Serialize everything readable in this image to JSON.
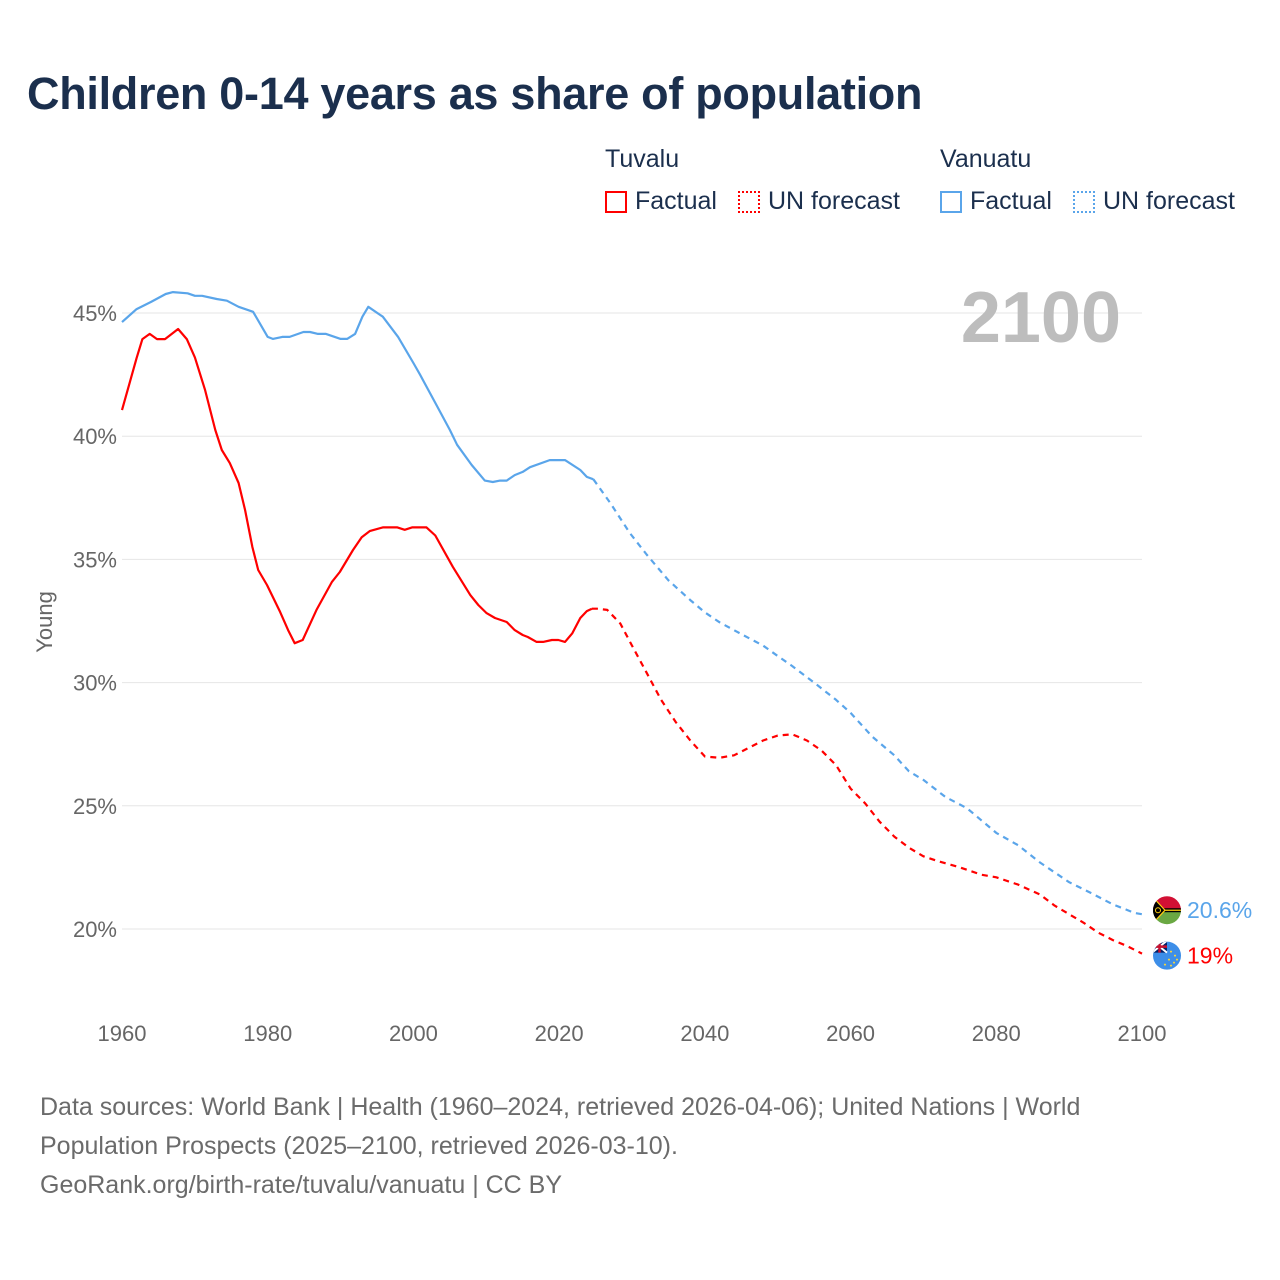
{
  "title": "Children 0-14 years as share of population",
  "legend": {
    "groups": [
      {
        "name": "Tuvalu",
        "items": [
          "Factual",
          "UN forecast"
        ],
        "color": "#ff0000"
      },
      {
        "name": "Vanuatu",
        "items": [
          "Factual",
          "UN forecast"
        ],
        "color": "#5aa5ea"
      }
    ]
  },
  "year_label": "2100",
  "footer": {
    "line1": "Data sources: World Bank | Health (1960–2024, retrieved 2026-04-06); United Nations | World",
    "line2": "Population Prospects (2025–2100, retrieved 2026-03-10).",
    "line3": "GeoRank.org/birth-rate/tuvalu/vanuatu | CC BY"
  },
  "chart_data": {
    "type": "line",
    "title": "Children 0-14 years as share of population",
    "xlabel": "",
    "ylabel": "Young",
    "xlim": [
      1960,
      2100
    ],
    "ylim": [
      17.5,
      47
    ],
    "x_ticks": [
      "1960",
      "1980",
      "2000",
      "2020",
      "2040",
      "2060",
      "2080",
      "2100"
    ],
    "y_ticks": [
      {
        "value": 20,
        "label": "20%"
      },
      {
        "value": 25,
        "label": "25%"
      },
      {
        "value": 30,
        "label": "30%"
      },
      {
        "value": 35,
        "label": "35%"
      },
      {
        "value": 40,
        "label": "40%"
      },
      {
        "value": 45,
        "label": "45%"
      }
    ],
    "grid": true,
    "legend_position": "top-right",
    "series": [
      {
        "name": "Tuvalu",
        "kind": "Factual",
        "color": "#ff0000",
        "dashed": false,
        "x": [
          1960,
          1962,
          1962.8,
          1963.8,
          1964.8,
          1965.9,
          1967.7,
          1968.9,
          1970,
          1971.4,
          1972.8,
          1973.7,
          1974.8,
          1976,
          1976.9,
          1977.9,
          1978.7,
          1979.9,
          1981.7,
          1982.8,
          1983.7,
          1984.8,
          1986.7,
          1988.8,
          1989.9,
          1991.7,
          1992.9,
          1994,
          1995.8,
          1997.8,
          1998.8,
          1999.8,
          2001.8,
          2003,
          2005.4,
          2007.8,
          2008.9,
          2010,
          2011.2,
          2012.8,
          2013.9,
          2015,
          2015.7,
          2016.9,
          2017.8,
          2019,
          2019.9,
          2020.8,
          2021.8,
          2022.9,
          2023.8,
          2024.5
        ],
        "y": [
          41.06,
          43.17,
          43.94,
          44.15,
          43.94,
          43.94,
          44.35,
          43.94,
          43.2,
          41.87,
          40.25,
          39.44,
          38.91,
          38.1,
          37.0,
          35.5,
          34.57,
          33.96,
          32.87,
          32.13,
          31.6,
          31.73,
          32.95,
          34.08,
          34.49,
          35.38,
          35.9,
          36.15,
          36.3,
          36.3,
          36.2,
          36.3,
          36.3,
          35.97,
          34.7,
          33.55,
          33.15,
          32.83,
          32.62,
          32.46,
          32.13,
          31.93,
          31.85,
          31.65,
          31.65,
          31.73,
          31.73,
          31.65,
          32.0,
          32.62,
          32.9,
          33.0
        ]
      },
      {
        "name": "Tuvalu",
        "kind": "UN forecast",
        "color": "#ff0000",
        "dashed": true,
        "x": [
          2024.5,
          2025.2,
          2026.6,
          2028.4,
          2030,
          2032,
          2034,
          2036,
          2038,
          2040,
          2042,
          2044,
          2046,
          2048,
          2050,
          2052,
          2054,
          2056,
          2058,
          2060,
          2062,
          2064,
          2066,
          2068,
          2070,
          2072,
          2075,
          2078,
          2080,
          2083,
          2086,
          2088,
          2090,
          2092,
          2094,
          2096,
          2098,
          2100
        ],
        "y": [
          33.0,
          33.0,
          32.95,
          32.4,
          31.5,
          30.4,
          29.3,
          28.4,
          27.65,
          27.0,
          26.95,
          27.05,
          27.35,
          27.65,
          27.85,
          27.9,
          27.65,
          27.25,
          26.65,
          25.7,
          25.1,
          24.35,
          23.75,
          23.3,
          22.95,
          22.75,
          22.5,
          22.2,
          22.1,
          21.8,
          21.4,
          20.95,
          20.6,
          20.25,
          19.85,
          19.55,
          19.3,
          19.0
        ]
      },
      {
        "name": "Vanuatu",
        "kind": "Factual",
        "color": "#5aa5ea",
        "dashed": false,
        "x": [
          1960,
          1962,
          1964,
          1966,
          1967,
          1969,
          1970,
          1971,
          1973,
          1974.4,
          1976,
          1978,
          1980,
          1980.7,
          1982,
          1983,
          1984.9,
          1985.8,
          1986.9,
          1988,
          1990,
          1990.9,
          1992,
          1993,
          1993.8,
          1995.8,
          1997.9,
          2000,
          2000.9,
          2003,
          2005,
          2006,
          2008,
          2009.8,
          2010.9,
          2011.9,
          2012.8,
          2013.9,
          2015,
          2016,
          2018.7,
          2020.8,
          2022.9,
          2023.8,
          2024.7
        ],
        "y": [
          44.63,
          45.16,
          45.45,
          45.77,
          45.85,
          45.8,
          45.7,
          45.7,
          45.57,
          45.5,
          45.25,
          45.05,
          44.03,
          43.95,
          44.03,
          44.03,
          44.23,
          44.23,
          44.15,
          44.15,
          43.95,
          43.95,
          44.15,
          44.85,
          45.25,
          44.85,
          44.03,
          42.97,
          42.5,
          41.35,
          40.25,
          39.65,
          38.83,
          38.2,
          38.14,
          38.2,
          38.2,
          38.42,
          38.55,
          38.74,
          39.03,
          39.03,
          38.63,
          38.35,
          38.25
        ]
      },
      {
        "name": "Vanuatu",
        "kind": "UN forecast",
        "color": "#5aa5ea",
        "dashed": true,
        "x": [
          2024.7,
          2027,
          2029.7,
          2032,
          2035,
          2038,
          2040,
          2042,
          2045,
          2048,
          2050,
          2052,
          2055,
          2058,
          2060,
          2063,
          2066,
          2068,
          2070,
          2073,
          2076,
          2080,
          2083,
          2086,
          2090,
          2093,
          2096,
          2099,
          2100
        ],
        "y": [
          38.25,
          37.3,
          36.07,
          35.2,
          34.15,
          33.35,
          32.85,
          32.45,
          31.97,
          31.5,
          31.08,
          30.67,
          30.0,
          29.3,
          28.77,
          27.8,
          27.05,
          26.4,
          26.05,
          25.36,
          24.9,
          23.9,
          23.4,
          22.7,
          21.9,
          21.46,
          21.0,
          20.65,
          20.6
        ]
      }
    ],
    "end_labels": [
      {
        "country": "Vanuatu",
        "value": 20.6,
        "label": "20.6%",
        "color": "#5aa5ea",
        "flag": "vanuatu-flag"
      },
      {
        "country": "Tuvalu",
        "value": 19.0,
        "label": "19%",
        "color": "#ff0000",
        "flag": "tuvalu-flag"
      }
    ]
  }
}
